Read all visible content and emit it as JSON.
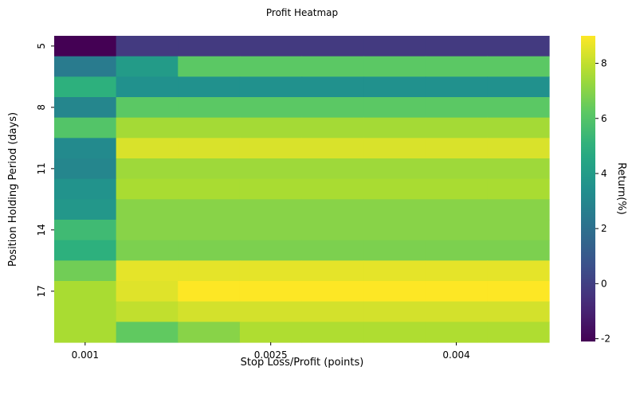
{
  "chart_data": {
    "type": "heatmap",
    "title": "Profit Heatmap",
    "xlabel": "Stop Loss/Profit (points)",
    "ylabel": "Position Holding Period (days)",
    "colorbar_label": "Return(%)",
    "colormap": "viridis",
    "vmin": -2.1,
    "vmax": 9.0,
    "x_values": [
      0.001,
      0.0015,
      0.002,
      0.0025,
      0.003,
      0.0035,
      0.004,
      0.0045
    ],
    "y_values": [
      5,
      6,
      7,
      8,
      9,
      10,
      11,
      12,
      13,
      14,
      15,
      16,
      17,
      18,
      19
    ],
    "x_tick_labels": [
      "0.001",
      "0.0025",
      "0.004"
    ],
    "y_tick_labels": [
      "5",
      "8",
      "11",
      "14",
      "17"
    ],
    "colorbar_ticks": [
      "-2",
      "0",
      "2",
      "4",
      "6",
      "8"
    ],
    "colorbar_tick_values": [
      -2,
      0,
      2,
      4,
      6,
      8
    ],
    "rows": [
      [
        -2.1,
        -0.2,
        -0.2,
        -0.2,
        -0.2,
        -0.2,
        -0.2,
        -0.2
      ],
      [
        2.5,
        4.0,
        6.2,
        6.2,
        6.2,
        6.2,
        6.2,
        6.2
      ],
      [
        5.0,
        3.5,
        3.5,
        3.5,
        3.5,
        3.5,
        3.5,
        3.5
      ],
      [
        3.0,
        6.2,
        6.2,
        6.2,
        6.2,
        6.2,
        6.2,
        6.2
      ],
      [
        6.0,
        7.5,
        7.5,
        7.5,
        7.5,
        7.5,
        7.5,
        7.5
      ],
      [
        3.2,
        8.4,
        8.4,
        8.4,
        8.4,
        8.4,
        8.4,
        8.4
      ],
      [
        3.0,
        7.4,
        7.4,
        7.4,
        7.4,
        7.4,
        7.4,
        7.4
      ],
      [
        3.6,
        7.6,
        7.6,
        7.6,
        7.6,
        7.6,
        7.6,
        7.6
      ],
      [
        3.8,
        7.0,
        7.0,
        7.0,
        7.0,
        7.0,
        7.0,
        7.0
      ],
      [
        5.5,
        7.0,
        7.0,
        7.0,
        7.0,
        7.0,
        7.0,
        7.0
      ],
      [
        5.0,
        6.8,
        6.8,
        6.8,
        6.8,
        6.8,
        6.8,
        6.8
      ],
      [
        6.6,
        8.6,
        8.6,
        8.6,
        8.6,
        8.6,
        8.6,
        8.6
      ],
      [
        7.6,
        8.5,
        9.0,
        9.0,
        9.0,
        9.0,
        9.0,
        9.0
      ],
      [
        7.6,
        8.0,
        8.3,
        8.3,
        8.3,
        8.3,
        8.3,
        8.3
      ],
      [
        7.6,
        6.3,
        7.0,
        7.7,
        7.7,
        7.7,
        7.7,
        7.7
      ]
    ]
  }
}
